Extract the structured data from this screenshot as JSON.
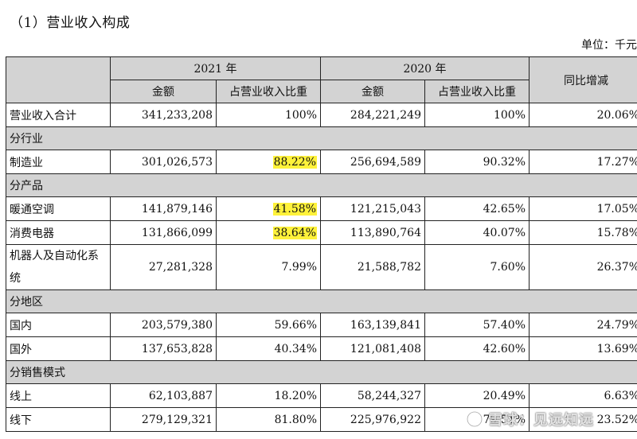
{
  "title": "（1）营业收入构成",
  "unit": "单位：千元",
  "headers": {
    "year_2021": "2021 年",
    "year_2020": "2020 年",
    "yoy": "同比增减",
    "amount": "金额",
    "share": "占营业收入比重"
  },
  "total_row": {
    "label": "营业收入合计",
    "amt_2021": "341,233,208",
    "pct_2021": "100%",
    "amt_2020": "284,221,249",
    "pct_2020": "100%",
    "yoy": "20.06%"
  },
  "sections": {
    "industry": "分行业",
    "product": "分产品",
    "region": "分地区",
    "sales_mode": "分销售模式"
  },
  "rows": {
    "manufacturing": {
      "label": "制造业",
      "amt_2021": "301,026,573",
      "pct_2021": "88.22%",
      "amt_2020": "256,694,589",
      "pct_2020": "90.32%",
      "yoy": "17.27%"
    },
    "hvac": {
      "label": "暖通空调",
      "amt_2021": "141,879,146",
      "pct_2021": "41.58%",
      "amt_2020": "121,215,043",
      "pct_2020": "42.65%",
      "yoy": "17.05%"
    },
    "consumer": {
      "label": "消费电器",
      "amt_2021": "131,866,099",
      "pct_2021": "38.64%",
      "amt_2020": "113,890,764",
      "pct_2020": "40.07%",
      "yoy": "15.78%"
    },
    "robotics": {
      "label": "机器人及自动化系统",
      "amt_2021": "27,281,328",
      "pct_2021": "7.99%",
      "amt_2020": "21,588,782",
      "pct_2020": "7.60%",
      "yoy": "26.37%"
    },
    "domestic": {
      "label": "国内",
      "amt_2021": "203,579,380",
      "pct_2021": "59.66%",
      "amt_2020": "163,139,841",
      "pct_2020": "57.40%",
      "yoy": "24.79%"
    },
    "overseas": {
      "label": "国外",
      "amt_2021": "137,653,828",
      "pct_2021": "40.34%",
      "amt_2020": "121,081,408",
      "pct_2020": "42.60%",
      "yoy": "13.69%"
    },
    "online": {
      "label": "线上",
      "amt_2021": "62,103,887",
      "pct_2021": "18.20%",
      "amt_2020": "58,244,327",
      "pct_2020": "20.49%",
      "yoy": "6.63%"
    },
    "offline": {
      "label": "线下",
      "amt_2021": "279,129,321",
      "pct_2021": "81.80%",
      "amt_2020": "225,976,922",
      "pct_2020": "79.51%",
      "yoy": "23.52%"
    }
  },
  "highlight_color": "#fff23a",
  "watermark": "雪球：见远知远"
}
